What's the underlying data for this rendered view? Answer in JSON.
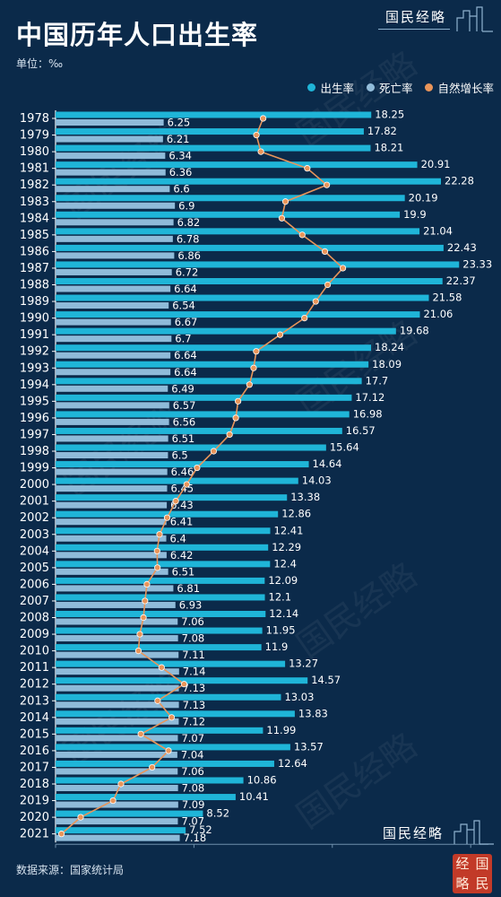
{
  "header": {
    "title": "中国历年人口出生率",
    "unit": "单位：‰",
    "brand": "国民经略"
  },
  "footer": {
    "source": "数据来源：国家统计局",
    "brand": "国民经略",
    "seal": [
      "经",
      "国",
      "略",
      "民"
    ]
  },
  "colors": {
    "background": "#0b2a4a",
    "birth": "#1fb5d8",
    "death": "#8fbbd9",
    "natural": "#e9955a"
  },
  "chart_data": {
    "type": "bar",
    "legend_position": "top-right",
    "grid": false,
    "xlim": [
      0,
      24
    ],
    "categories": [
      "1978",
      "1979",
      "1980",
      "1981",
      "1982",
      "1983",
      "1984",
      "1985",
      "1986",
      "1987",
      "1988",
      "1989",
      "1990",
      "1991",
      "1992",
      "1993",
      "1994",
      "1995",
      "1996",
      "1997",
      "1998",
      "1999",
      "2000",
      "2001",
      "2002",
      "2003",
      "2004",
      "2005",
      "2006",
      "2007",
      "2008",
      "2009",
      "2010",
      "2011",
      "2012",
      "2013",
      "2014",
      "2015",
      "2016",
      "2017",
      "2018",
      "2019",
      "2020",
      "2021"
    ],
    "series": [
      {
        "name": "出生率",
        "kind": "bar",
        "labels": true,
        "values": [
          18.25,
          17.82,
          18.21,
          20.91,
          22.28,
          20.19,
          19.9,
          21.04,
          22.43,
          23.33,
          22.37,
          21.58,
          21.06,
          19.68,
          18.24,
          18.09,
          17.7,
          17.12,
          16.98,
          16.57,
          15.64,
          14.64,
          14.03,
          13.38,
          12.86,
          12.41,
          12.29,
          12.4,
          12.09,
          12.1,
          12.14,
          11.95,
          11.9,
          13.27,
          14.57,
          13.03,
          13.83,
          11.99,
          13.57,
          12.64,
          10.86,
          10.41,
          8.52,
          7.52
        ]
      },
      {
        "name": "死亡率",
        "kind": "bar",
        "labels": true,
        "values": [
          6.25,
          6.21,
          6.34,
          6.36,
          6.6,
          6.9,
          6.82,
          6.78,
          6.86,
          6.72,
          6.64,
          6.54,
          6.67,
          6.7,
          6.64,
          6.64,
          6.49,
          6.57,
          6.56,
          6.51,
          6.5,
          6.46,
          6.45,
          6.43,
          6.41,
          6.4,
          6.42,
          6.51,
          6.81,
          6.93,
          7.06,
          7.08,
          7.11,
          7.14,
          7.13,
          7.13,
          7.12,
          7.07,
          7.04,
          7.06,
          7.08,
          7.09,
          7.07,
          7.18
        ]
      },
      {
        "name": "自然增长率",
        "kind": "line",
        "labels": false,
        "values": [
          12,
          11.61,
          11.87,
          14.55,
          15.68,
          13.29,
          13.08,
          14.26,
          15.57,
          16.61,
          15.73,
          15.04,
          14.39,
          12.98,
          11.6,
          11.45,
          11.21,
          10.55,
          10.42,
          10.06,
          9.14,
          8.18,
          7.58,
          6.95,
          6.45,
          6.01,
          5.87,
          5.89,
          5.28,
          5.17,
          5.08,
          4.87,
          4.79,
          6.13,
          7.43,
          5.9,
          6.71,
          4.93,
          6.53,
          5.58,
          3.78,
          3.32,
          1.45,
          0.34
        ]
      }
    ]
  }
}
